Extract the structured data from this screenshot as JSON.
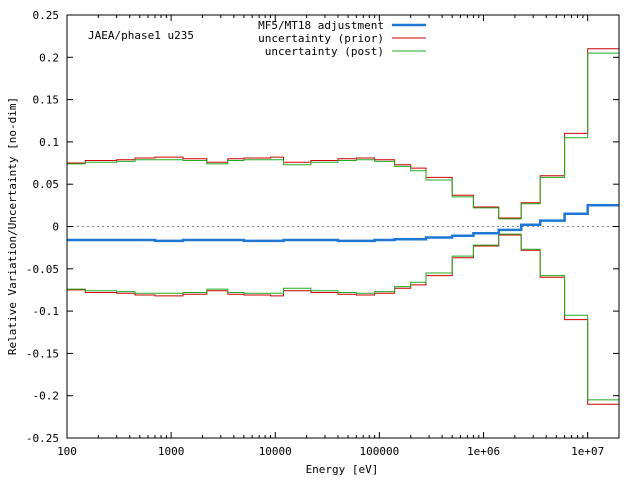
{
  "chart_data": {
    "type": "line",
    "annotation": "JAEA/phase1 u235",
    "xlabel": "Energy [eV]",
    "ylabel": "Relative Variation/Uncertainty [no-dim]",
    "x_scale": "log",
    "xlim": [
      100,
      20000000
    ],
    "ylim": [
      -0.25,
      0.25
    ],
    "x_ticks": [
      {
        "value": 100,
        "label": "100"
      },
      {
        "value": 1000,
        "label": "1000"
      },
      {
        "value": 10000,
        "label": "10000"
      },
      {
        "value": 100000,
        "label": "100000"
      },
      {
        "value": 1000000,
        "label": "1e+06"
      },
      {
        "value": 10000000,
        "label": "1e+07"
      }
    ],
    "y_ticks": [
      {
        "value": 0.25,
        "label": "0.25"
      },
      {
        "value": 0.2,
        "label": "0.2"
      },
      {
        "value": 0.15,
        "label": "0.15"
      },
      {
        "value": 0.1,
        "label": "0.1"
      },
      {
        "value": 0.05,
        "label": "0.05"
      },
      {
        "value": 0,
        "label": "0"
      },
      {
        "value": -0.05,
        "label": "-0.05"
      },
      {
        "value": -0.1,
        "label": "-0.1"
      },
      {
        "value": -0.15,
        "label": "-0.15"
      },
      {
        "value": -0.2,
        "label": "-0.2"
      },
      {
        "value": -0.25,
        "label": "-0.25"
      }
    ],
    "zero_line": true,
    "grid": false,
    "legend_position": "top-right",
    "bin_edges": [
      100,
      150,
      300,
      450,
      700,
      1300,
      2200,
      3500,
      5000,
      9000,
      12000,
      22000,
      40000,
      60000,
      90000,
      140000,
      200000,
      280000,
      500000,
      800000,
      1400000,
      2300000,
      3500000,
      6000000,
      10000000,
      20000000
    ],
    "series": [
      {
        "name": "MF5/MT18 adjustment",
        "color": "#1f77d4",
        "values": [
          -0.016,
          -0.016,
          -0.016,
          -0.016,
          -0.017,
          -0.016,
          -0.016,
          -0.016,
          -0.017,
          -0.017,
          -0.016,
          -0.016,
          -0.017,
          -0.017,
          -0.016,
          -0.015,
          -0.015,
          -0.013,
          -0.011,
          -0.008,
          -0.004,
          0.002,
          0.007,
          0.015,
          0.025,
          0.042
        ]
      },
      {
        "name": "uncertainty (prior)",
        "color": "#cc0000",
        "values": [
          0.075,
          0.078,
          0.079,
          0.081,
          0.082,
          0.08,
          0.076,
          0.08,
          0.081,
          0.082,
          0.076,
          0.078,
          0.08,
          0.081,
          0.079,
          0.073,
          0.069,
          0.058,
          0.037,
          0.023,
          0.01,
          0.028,
          0.06,
          0.11,
          0.21
        ]
      },
      {
        "name": "uncertainty (post)",
        "color": "#22aa22",
        "values": [
          0.074,
          0.076,
          0.077,
          0.079,
          0.079,
          0.078,
          0.074,
          0.078,
          0.079,
          0.079,
          0.073,
          0.076,
          0.078,
          0.079,
          0.077,
          0.071,
          0.066,
          0.055,
          0.035,
          0.022,
          0.009,
          0.027,
          0.058,
          0.105,
          0.205
        ]
      }
    ]
  }
}
